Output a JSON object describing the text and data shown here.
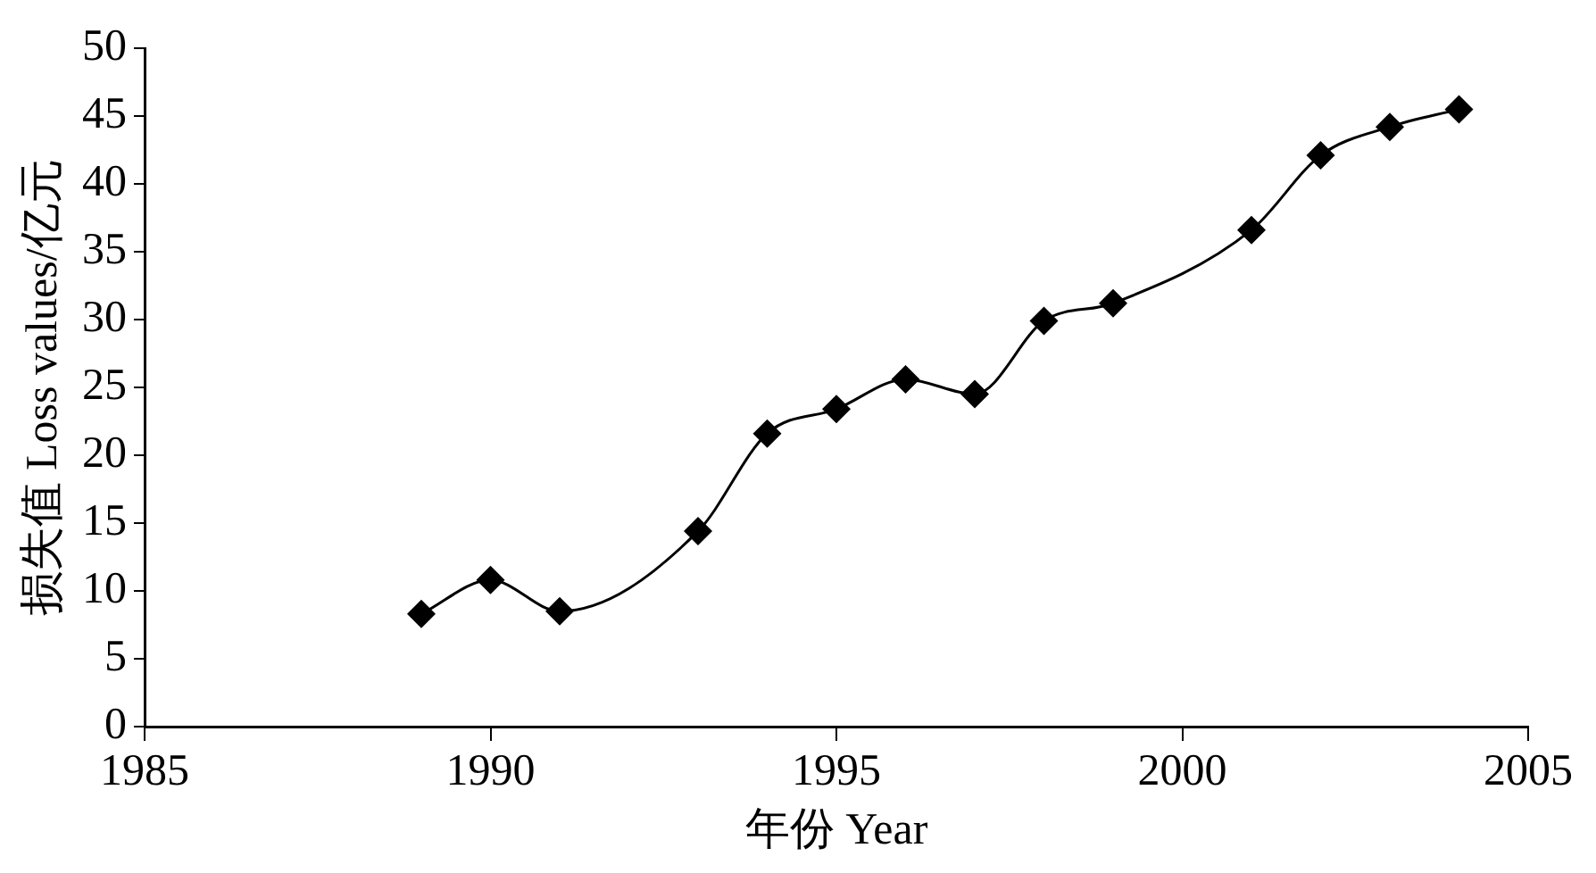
{
  "chart_data": {
    "type": "line",
    "xlabel": "年份 Year",
    "ylabel": "损失值 Loss values/亿元",
    "x": [
      1989,
      1990,
      1991,
      1993,
      1994,
      1995,
      1996,
      1997,
      1998,
      1999,
      2001,
      2002,
      2003,
      2004
    ],
    "series": [
      {
        "color": "#000000",
        "values": [
          8.3,
          10.8,
          8.5,
          14.4,
          21.6,
          23.4,
          25.6,
          24.5,
          29.9,
          31.2,
          36.6,
          42.1,
          44.2,
          45.5
        ]
      }
    ],
    "xlim": [
      1985,
      2005
    ],
    "xticks": [
      1985,
      1990,
      1995,
      2000,
      2005
    ],
    "ylim": [
      0,
      50
    ],
    "yticks": [
      0,
      5,
      10,
      15,
      20,
      25,
      30,
      35,
      40,
      45,
      50
    ],
    "grid": false,
    "legend": false,
    "marker": "diamond",
    "line_style": "solid"
  }
}
